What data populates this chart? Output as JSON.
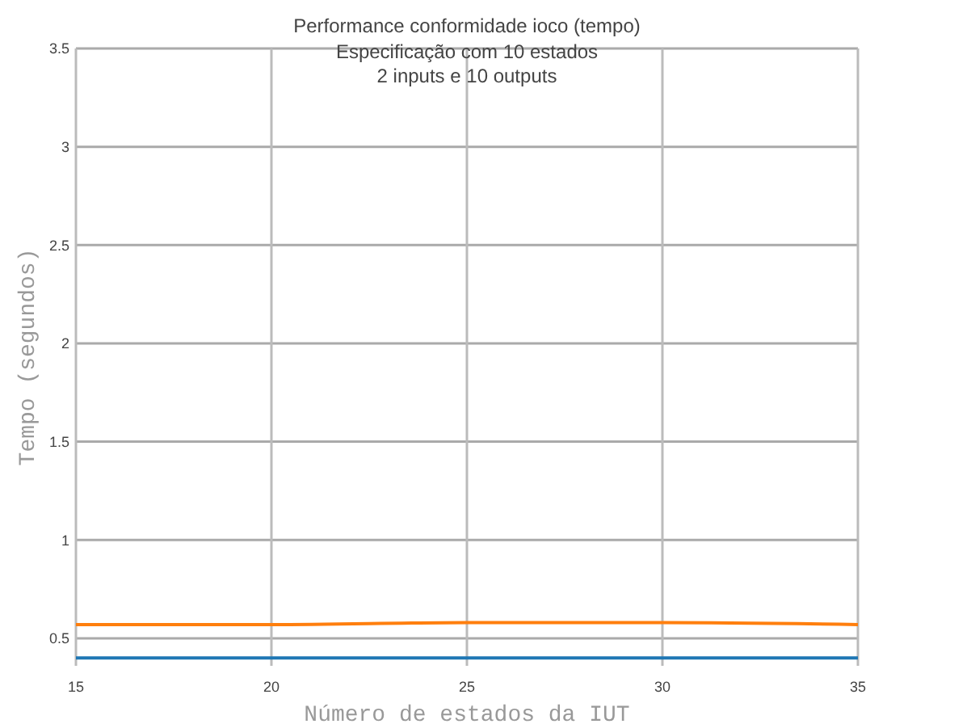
{
  "chart_data": {
    "type": "line",
    "title": "Performance conformidade ioco (tempo)",
    "subtitle": "Especificação com 10 estados\n2 inputs e 10 outputs",
    "xlabel": "Número de estados da IUT",
    "ylabel": "Tempo (segundos)",
    "x": [
      15,
      20,
      25,
      30,
      35
    ],
    "series": [
      {
        "color": "#1f77b4",
        "values": [
          0.4,
          0.4,
          0.4,
          0.4,
          0.4
        ]
      },
      {
        "color": "#ff7f0e",
        "values": [
          0.57,
          0.57,
          0.58,
          0.58,
          0.57
        ]
      }
    ],
    "xlim": [
      15,
      35
    ],
    "xticks": [
      15,
      20,
      25,
      30,
      35
    ],
    "ylim": [
      0.36,
      3.5
    ],
    "yticks": [
      0.5,
      1,
      1.5,
      2,
      2.5,
      3,
      3.5
    ],
    "grid": true,
    "marker": "none",
    "line_style": "solid"
  }
}
